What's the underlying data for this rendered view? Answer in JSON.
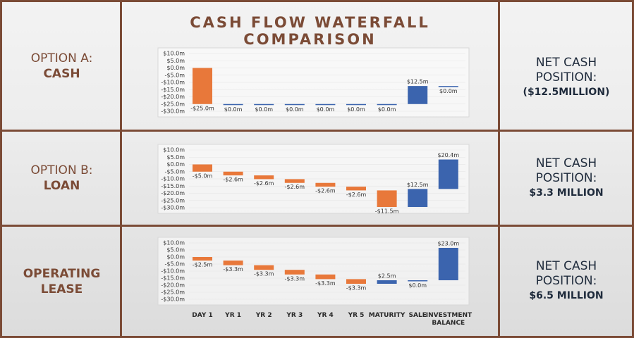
{
  "title": "CASH FLOW WATERFALL COMPARISON",
  "rows": [
    {
      "heading": "OPTION A:",
      "name": "CASH",
      "net_label": "NET CASH POSITION:",
      "net_value": "($12.5MILLION)"
    },
    {
      "heading": "OPTION B:",
      "name": "LOAN",
      "net_label": "NET CASH POSITION:",
      "net_value": "$3.3 MILLION"
    },
    {
      "name": "OPERATING LEASE",
      "net_label": "NET CASH POSITION:",
      "net_value": "$6.5 MILLION"
    }
  ],
  "chart_data": [
    {
      "type": "waterfall",
      "increase_color": "#3b64ae",
      "decrease_color": "#e8783a",
      "categories": [
        null,
        null,
        null,
        null,
        null,
        null,
        null,
        null,
        null
      ],
      "values": [
        -25,
        0,
        0,
        0,
        0,
        0,
        0,
        12.5,
        0
      ],
      "value_labels": [
        "-$25.0m",
        "$0.0m",
        "$0.0m",
        "$0.0m",
        "$0.0m",
        "$0.0m",
        "$0.0m",
        "$12.5m",
        "$0.0m"
      ],
      "ylim": [
        -30,
        10
      ],
      "yticks": [
        {
          "value": 10,
          "label": "$10.0m"
        },
        {
          "value": 5,
          "label": "$5.0m"
        },
        {
          "value": 0,
          "label": "$0.0m"
        },
        {
          "value": -5,
          "label": "-$5.0m"
        },
        {
          "value": -10,
          "label": "-$10.0m"
        },
        {
          "value": -15,
          "label": "-$15.0m"
        },
        {
          "value": -20,
          "label": "-$20.0m"
        },
        {
          "value": -25,
          "label": "-$25.0m"
        },
        {
          "value": -30,
          "label": "-$30.0m"
        }
      ]
    },
    {
      "type": "waterfall",
      "increase_color": "#3b64ae",
      "decrease_color": "#e8783a",
      "categories": [
        null,
        null,
        null,
        null,
        null,
        null,
        null,
        null,
        null
      ],
      "values": [
        -5,
        -2.6,
        -2.6,
        -2.6,
        -2.6,
        -2.6,
        -11.5,
        12.5,
        20.4
      ],
      "value_labels": [
        "-$5.0m",
        "-$2.6m",
        "-$2.6m",
        "-$2.6m",
        "-$2.6m",
        "-$2.6m",
        "-$11.5m",
        "$12.5m",
        "$20.4m"
      ],
      "ylim": [
        -30,
        10
      ],
      "yticks": [
        {
          "value": 10,
          "label": "$10.0m"
        },
        {
          "value": 5,
          "label": "$5.0m"
        },
        {
          "value": 0,
          "label": "$0.0m"
        },
        {
          "value": -5,
          "label": "-$5.0m"
        },
        {
          "value": -10,
          "label": "-$10.0m"
        },
        {
          "value": -15,
          "label": "-$15.0m"
        },
        {
          "value": -20,
          "label": "-$20.0m"
        },
        {
          "value": -25,
          "label": "-$25.0m"
        },
        {
          "value": -30,
          "label": "-$30.0m"
        }
      ]
    },
    {
      "type": "waterfall",
      "increase_color": "#3b64ae",
      "decrease_color": "#e8783a",
      "categories": [
        "DAY 1",
        "YR 1",
        "YR 2",
        "YR 3",
        "YR 4",
        "YR 5",
        "MATURITY",
        "SALE",
        "INVESTMENT BALANCE"
      ],
      "values": [
        -2.5,
        -3.3,
        -3.3,
        -3.3,
        -3.3,
        -3.3,
        2.5,
        0,
        23
      ],
      "value_labels": [
        "-$2.5m",
        "-$3.3m",
        "-$3.3m",
        "-$3.3m",
        "-$3.3m",
        "-$3.3m",
        "$2.5m",
        "$0.0m",
        "$23.0m"
      ],
      "ylim": [
        -30,
        10
      ],
      "yticks": [
        {
          "value": 10,
          "label": "$10.0m"
        },
        {
          "value": 5,
          "label": "$5.0m"
        },
        {
          "value": 0,
          "label": "$0.0m"
        },
        {
          "value": -5,
          "label": "-$5.0m"
        },
        {
          "value": -10,
          "label": "-$10.0m"
        },
        {
          "value": -15,
          "label": "-$15.0m"
        },
        {
          "value": -20,
          "label": "-$20.0m"
        },
        {
          "value": -25,
          "label": "-$25.0m"
        },
        {
          "value": -30,
          "label": "-$30.0m"
        }
      ]
    }
  ]
}
